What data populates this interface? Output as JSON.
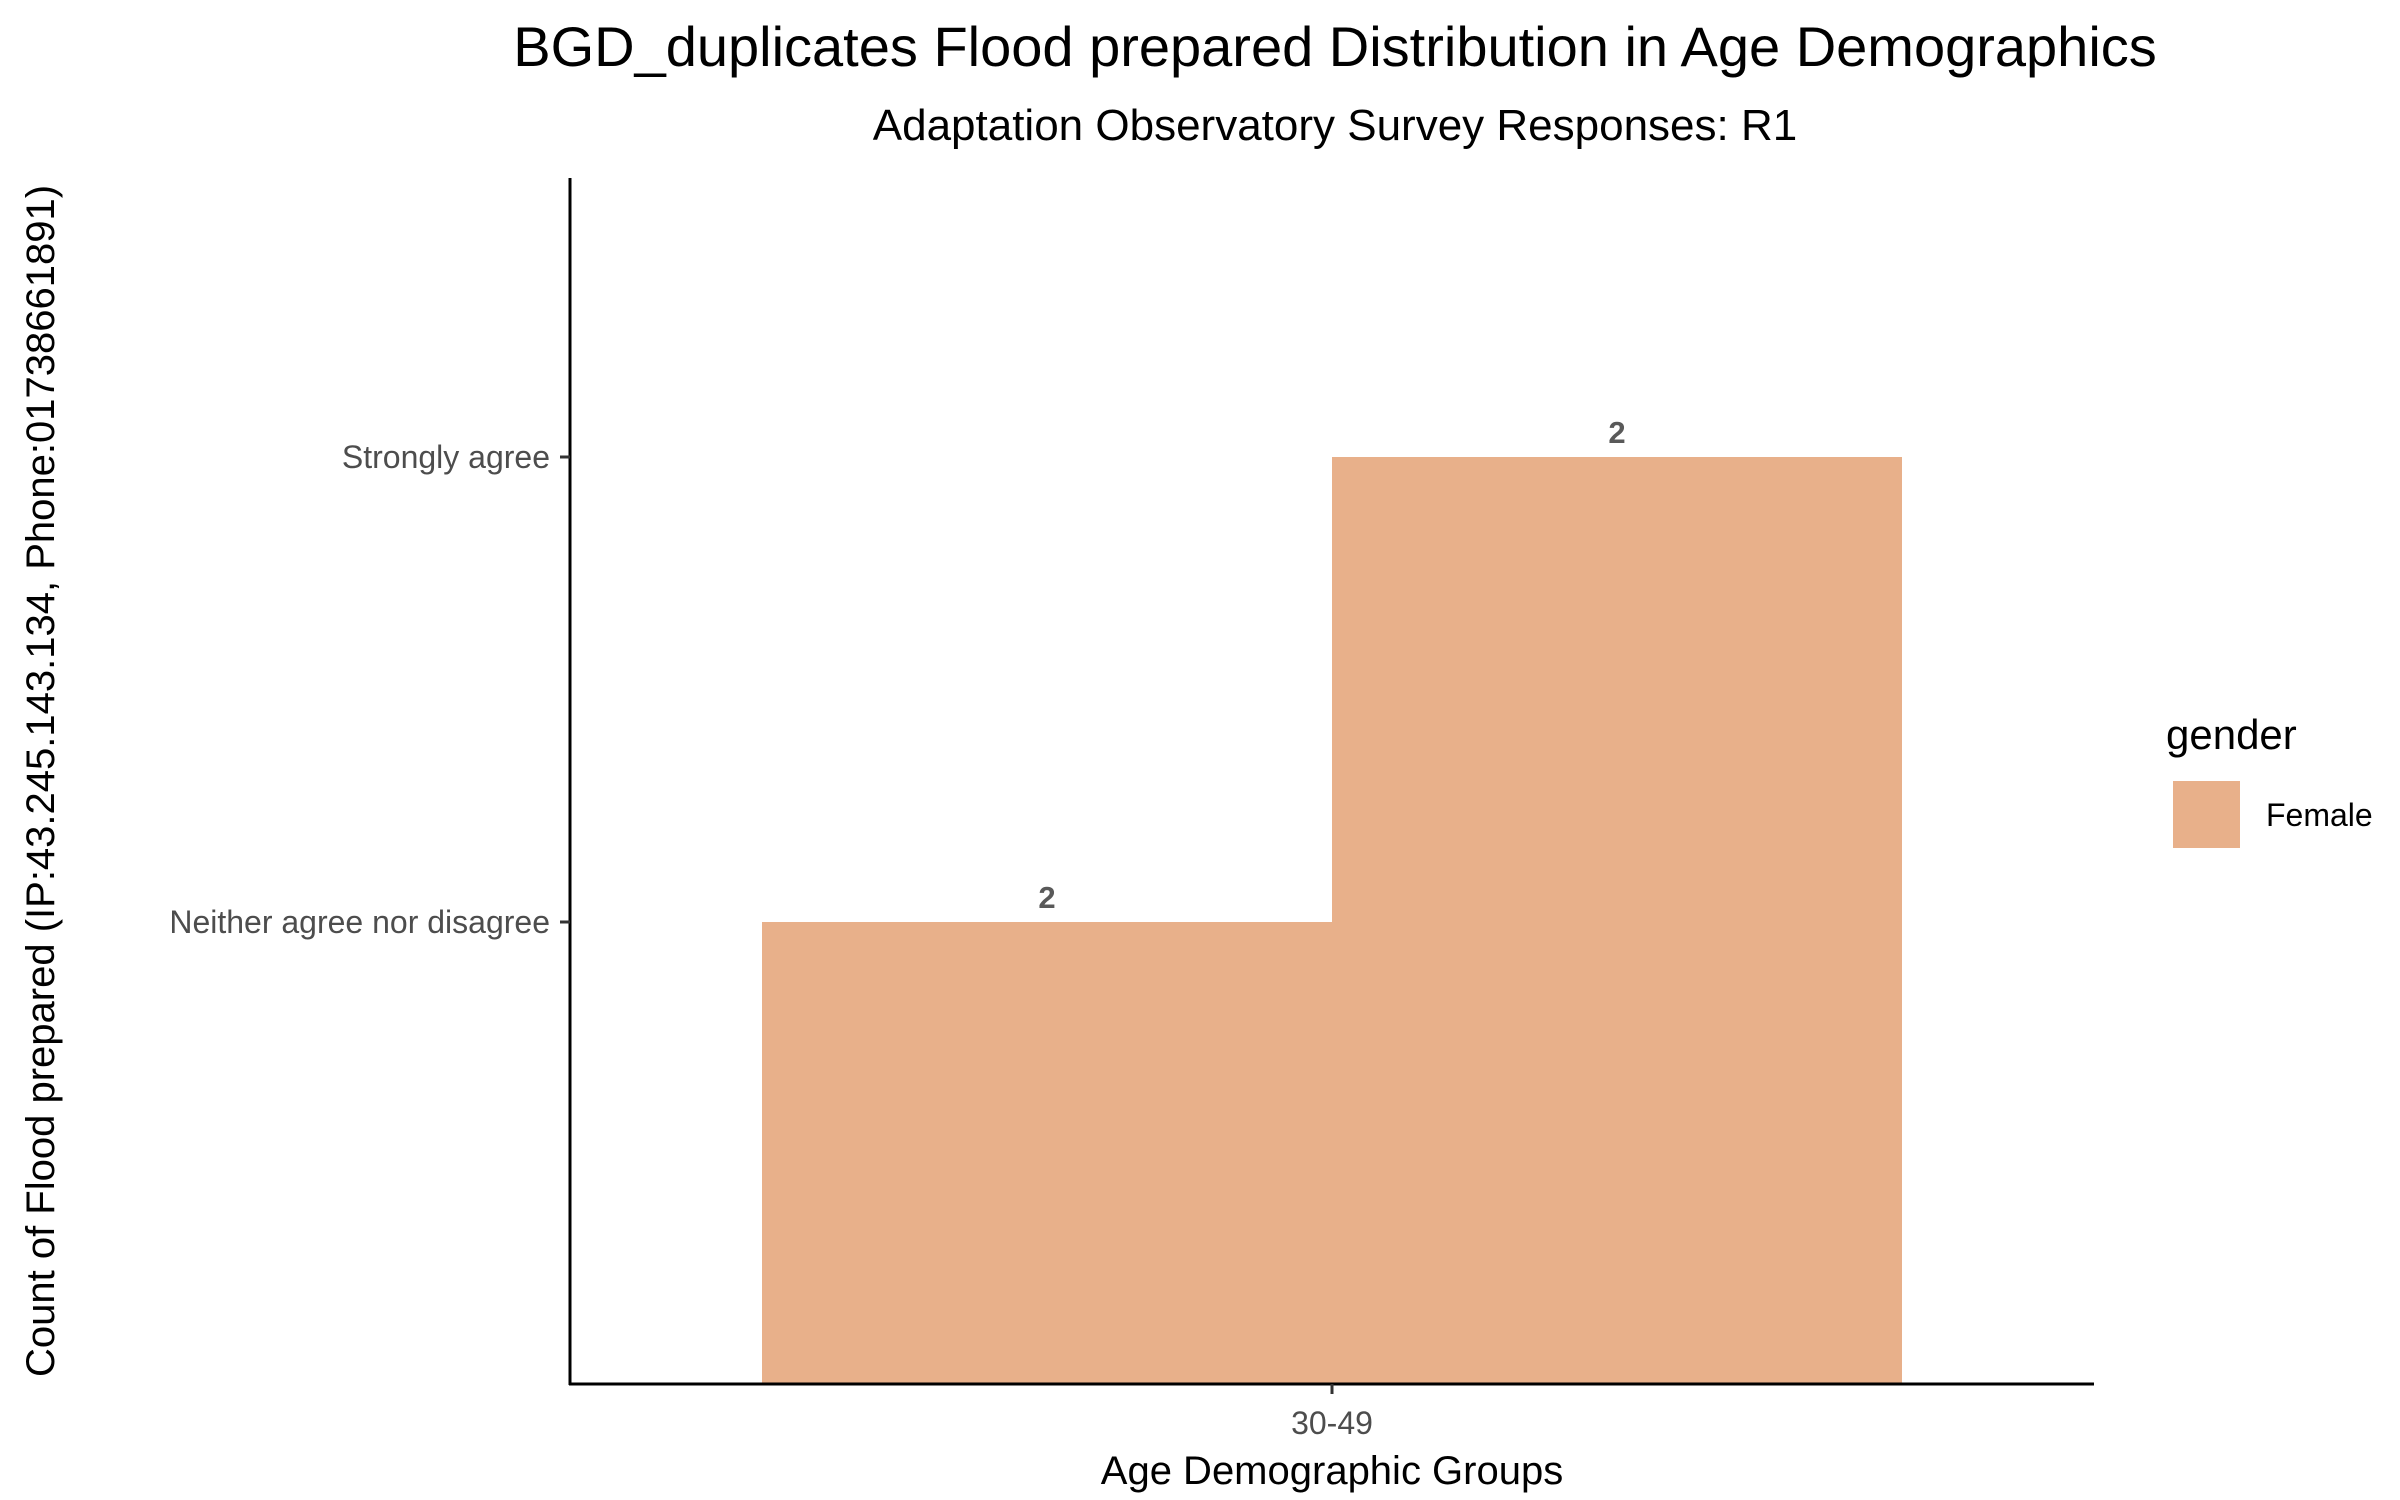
{
  "chart_data": {
    "type": "bar",
    "title": "BGD_duplicates Flood prepared Distribution in Age Demographics",
    "subtitle": "Adaptation Observatory Survey Responses: R1",
    "xlabel": "Age Demographic Groups",
    "ylabel": "Count of Flood prepared (IP:43.245.143.134, Phone:01738661891)",
    "categories": [
      "30-49"
    ],
    "y_categories": [
      "Neither agree nor disagree",
      "Strongly agree"
    ],
    "bars": [
      {
        "category": "30-49",
        "dodge_group": "Neither agree nor disagree",
        "y_level": "Neither agree nor disagree",
        "label": "2",
        "series": "Female"
      },
      {
        "category": "30-49",
        "dodge_group": "Strongly agree",
        "y_level": "Strongly agree",
        "label": "2",
        "series": "Female"
      }
    ],
    "series": [
      {
        "name": "Female",
        "color": "#e8b08a"
      }
    ],
    "legend": {
      "title": "gender",
      "position": "right",
      "items": [
        "Female"
      ]
    },
    "grid": false
  }
}
